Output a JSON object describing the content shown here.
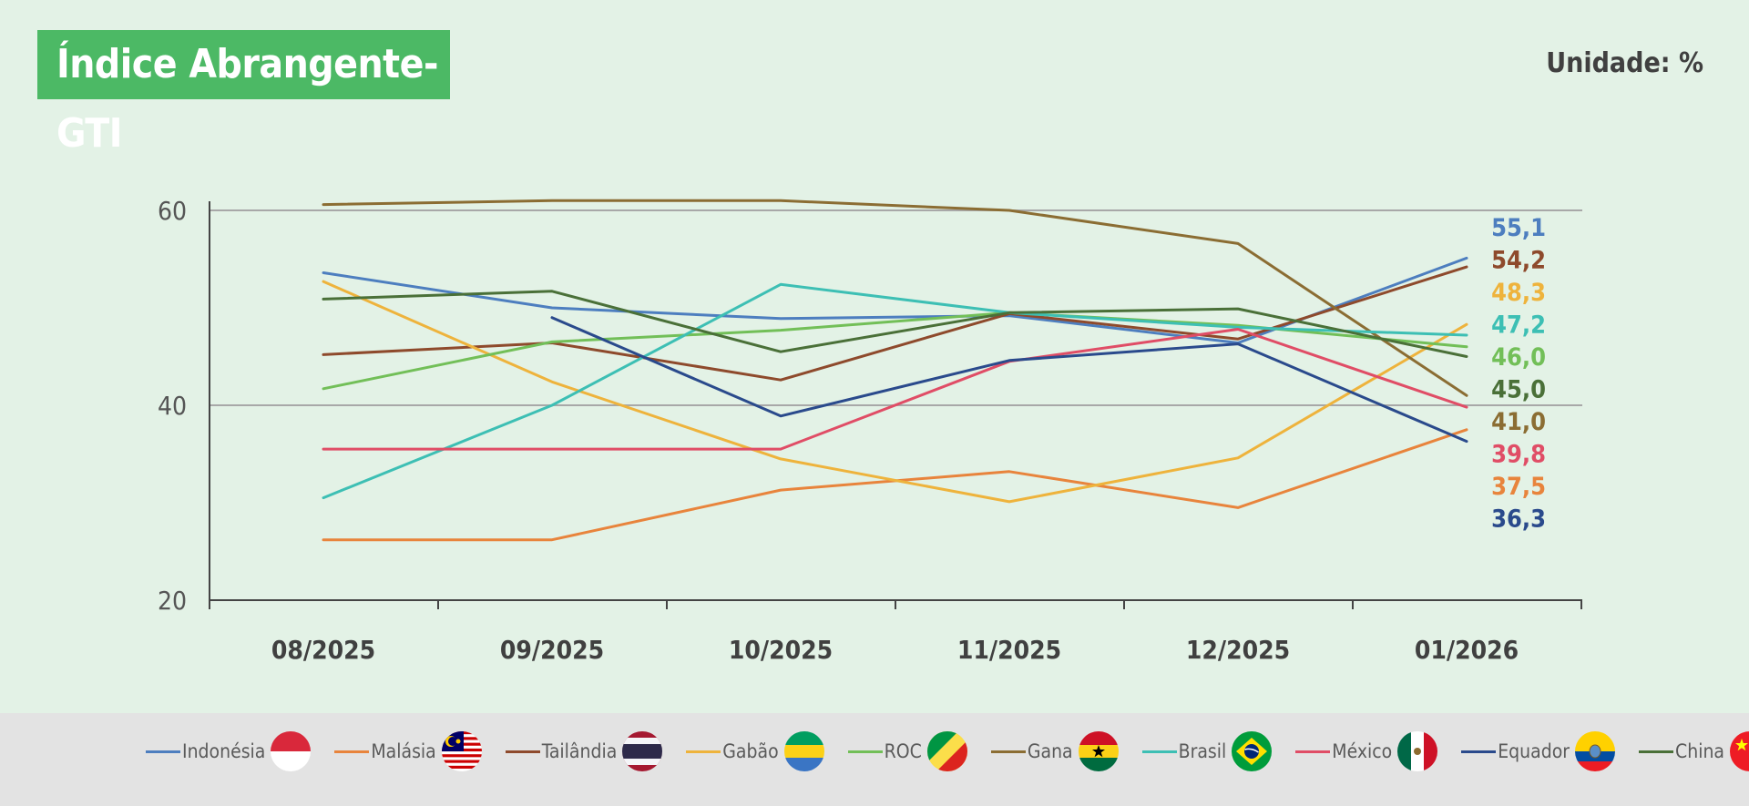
{
  "title": "Índice Abrangente-GTI",
  "unit_label": "Unidade: %",
  "chart_data": {
    "type": "line",
    "title": "Índice Abrangente-GTI",
    "xlabel": "",
    "ylabel": "Unidade: %",
    "ylim": [
      20,
      60
    ],
    "yticks": [
      20,
      40,
      60
    ],
    "grid": true,
    "categories": [
      "08/2025",
      "09/2025",
      "10/2025",
      "11/2025",
      "12/2025",
      "01/2026"
    ],
    "series": [
      {
        "name": "Indonésia",
        "color": "#4d7ebf",
        "values": [
          53.6,
          50.0,
          48.9,
          49.2,
          46.4,
          55.1
        ],
        "end_label": "55,1"
      },
      {
        "name": "Malásia",
        "color": "#e8843c",
        "values": [
          26.2,
          26.2,
          31.3,
          33.2,
          29.5,
          37.5
        ],
        "end_label": "37,5"
      },
      {
        "name": "Tailândia",
        "color": "#8e4a2c",
        "values": [
          45.2,
          46.4,
          42.6,
          49.4,
          46.8,
          54.2
        ],
        "end_label": "54,2"
      },
      {
        "name": "Gabão",
        "color": "#eeb33c",
        "values": [
          52.7,
          42.4,
          34.5,
          30.1,
          34.6,
          48.3
        ],
        "end_label": "48,3"
      },
      {
        "name": "ROC",
        "color": "#72bf58",
        "values": [
          41.7,
          46.5,
          47.7,
          49.5,
          48.2,
          46.0
        ],
        "end_label": "46,0"
      },
      {
        "name": "Gana",
        "color": "#8b6d33",
        "values": [
          60.6,
          61.0,
          61.0,
          60.0,
          56.6,
          41.0
        ],
        "end_label": "41,0"
      },
      {
        "name": "Brasil",
        "color": "#3dbfb4",
        "values": [
          30.5,
          40.0,
          52.4,
          49.5,
          48.0,
          47.2
        ],
        "end_label": "47,2"
      },
      {
        "name": "México",
        "color": "#e04d66",
        "values": [
          35.5,
          35.5,
          35.5,
          44.5,
          47.8,
          39.8
        ],
        "end_label": "39,8"
      },
      {
        "name": "Equador",
        "color": "#2a4a8c",
        "values": [
          null,
          49.0,
          38.9,
          44.6,
          46.3,
          36.3
        ],
        "end_label": "36,3"
      },
      {
        "name": "China",
        "color": "#4a7038",
        "values": [
          50.9,
          51.7,
          45.5,
          49.5,
          49.9,
          45.0
        ],
        "end_label": "45,0"
      }
    ]
  }
}
